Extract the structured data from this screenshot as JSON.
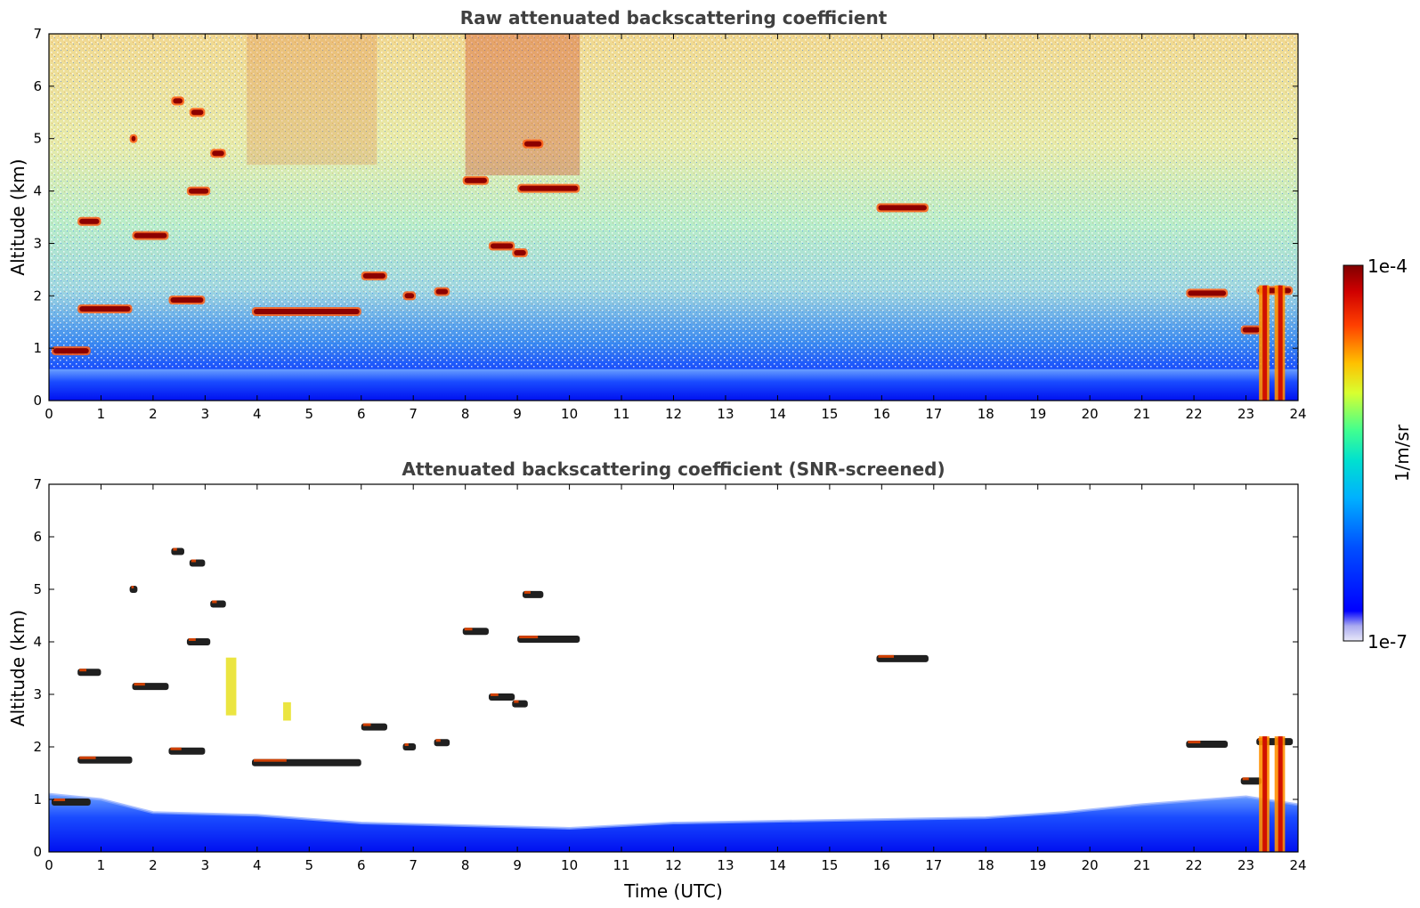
{
  "chart_data": [
    {
      "type": "heatmap",
      "title": "Raw attenuated backscattering coefficient",
      "xlabel": "",
      "ylabel": "Altitude (km)",
      "xlim": [
        0,
        24
      ],
      "ylim": [
        0,
        7
      ],
      "xticks": [
        "0",
        "1",
        "2",
        "3",
        "4",
        "5",
        "6",
        "7",
        "8",
        "9",
        "10",
        "11",
        "12",
        "13",
        "14",
        "15",
        "16",
        "17",
        "18",
        "19",
        "20",
        "21",
        "22",
        "23",
        "24"
      ],
      "yticks": [
        "0",
        "1",
        "2",
        "3",
        "4",
        "5",
        "6",
        "7"
      ],
      "screened": false,
      "cloud_layers": [
        {
          "t0": 0.05,
          "t1": 0.8,
          "alt": 0.95
        },
        {
          "t0": 0.55,
          "t1": 1.6,
          "alt": 1.75
        },
        {
          "t0": 0.55,
          "t1": 1.0,
          "alt": 3.42
        },
        {
          "t0": 1.6,
          "t1": 2.3,
          "alt": 3.15
        },
        {
          "t0": 1.55,
          "t1": 1.7,
          "alt": 5.0
        },
        {
          "t0": 2.3,
          "t1": 3.0,
          "alt": 1.92
        },
        {
          "t0": 2.35,
          "t1": 2.6,
          "alt": 5.72
        },
        {
          "t0": 2.7,
          "t1": 3.0,
          "alt": 5.5
        },
        {
          "t0": 2.65,
          "t1": 3.1,
          "alt": 4.0
        },
        {
          "t0": 3.1,
          "t1": 3.4,
          "alt": 4.72
        },
        {
          "t0": 3.9,
          "t1": 6.0,
          "alt": 1.7
        },
        {
          "t0": 6.0,
          "t1": 6.5,
          "alt": 2.38
        },
        {
          "t0": 6.8,
          "t1": 7.05,
          "alt": 2.0
        },
        {
          "t0": 7.4,
          "t1": 7.7,
          "alt": 2.08
        },
        {
          "t0": 7.95,
          "t1": 8.45,
          "alt": 4.2
        },
        {
          "t0": 8.45,
          "t1": 8.95,
          "alt": 2.95
        },
        {
          "t0": 8.9,
          "t1": 9.2,
          "alt": 2.82
        },
        {
          "t0": 9.1,
          "t1": 9.5,
          "alt": 4.9
        },
        {
          "t0": 9.0,
          "t1": 10.2,
          "alt": 4.05
        },
        {
          "t0": 15.9,
          "t1": 16.9,
          "alt": 3.68
        },
        {
          "t0": 21.85,
          "t1": 22.65,
          "alt": 2.05
        },
        {
          "t0": 22.9,
          "t1": 23.3,
          "alt": 1.35
        },
        {
          "t0": 23.2,
          "t1": 23.9,
          "alt": 2.1
        }
      ]
    },
    {
      "type": "heatmap",
      "title": "Attenuated backscattering coefficient (SNR-screened)",
      "xlabel": "Time (UTC)",
      "ylabel": "Altitude (km)",
      "xlim": [
        0,
        24
      ],
      "ylim": [
        0,
        7
      ],
      "xticks": [
        "0",
        "1",
        "2",
        "3",
        "4",
        "5",
        "6",
        "7",
        "8",
        "9",
        "10",
        "11",
        "12",
        "13",
        "14",
        "15",
        "16",
        "17",
        "18",
        "19",
        "20",
        "21",
        "22",
        "23",
        "24"
      ],
      "yticks": [
        "0",
        "1",
        "2",
        "3",
        "4",
        "5",
        "6",
        "7"
      ],
      "screened": true,
      "boundary_layer_top_km": [
        {
          "t": 0,
          "alt": 1.1
        },
        {
          "t": 1,
          "alt": 1.0
        },
        {
          "t": 2,
          "alt": 0.75
        },
        {
          "t": 4,
          "alt": 0.7
        },
        {
          "t": 6,
          "alt": 0.55
        },
        {
          "t": 8,
          "alt": 0.5
        },
        {
          "t": 10,
          "alt": 0.45
        },
        {
          "t": 12,
          "alt": 0.55
        },
        {
          "t": 15,
          "alt": 0.6
        },
        {
          "t": 18,
          "alt": 0.65
        },
        {
          "t": 19.5,
          "alt": 0.75
        },
        {
          "t": 21,
          "alt": 0.9
        },
        {
          "t": 23,
          "alt": 1.05
        },
        {
          "t": 24,
          "alt": 0.9
        }
      ]
    }
  ],
  "colorbar": {
    "label": "1/m/sr",
    "max_label": "1e-4",
    "min_label": "1e-7",
    "scale": "log",
    "range": [
      1e-07,
      0.0001
    ],
    "colormap": [
      "#e8e8f8",
      "#0000ff",
      "#0080ff",
      "#00e0e0",
      "#40ff90",
      "#e0ff20",
      "#ffc000",
      "#ff4000",
      "#d00000",
      "#800000"
    ]
  }
}
